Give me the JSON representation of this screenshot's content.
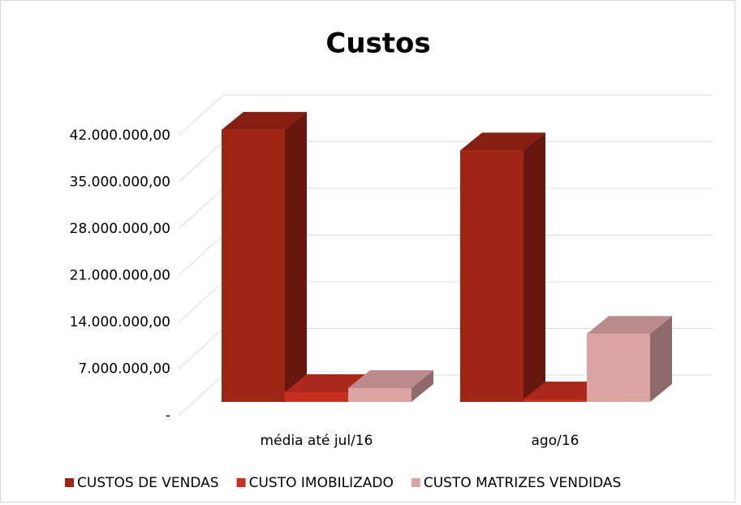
{
  "chart_data": {
    "type": "bar3d",
    "title": "Custos",
    "categories": [
      "média até jul/16",
      "ago/16"
    ],
    "series": [
      {
        "name": "CUSTOS DE VENDAS",
        "color": "#9e2414",
        "values": [
          40800000,
          37700000
        ]
      },
      {
        "name": "CUSTO IMOBILIZADO",
        "color": "#c9311f",
        "values": [
          1460000,
          370000
        ]
      },
      {
        "name": "CUSTO MATRIZES VENDIDAS",
        "color": "#dca3a3",
        "values": [
          2070000,
          10200000
        ]
      }
    ],
    "ylim": [
      0,
      42000000
    ],
    "yticks": [
      {
        "value": 0,
        "label": "-"
      },
      {
        "value": 7000000,
        "label": "7.000.000,00"
      },
      {
        "value": 14000000,
        "label": "14.000.000,00"
      },
      {
        "value": 21000000,
        "label": "21.000.000,00"
      },
      {
        "value": 28000000,
        "label": "28.000.000,00"
      },
      {
        "value": 35000000,
        "label": "35.000.000,00"
      },
      {
        "value": 42000000,
        "label": "42.000.000,00"
      }
    ],
    "grid": true,
    "legend": "bottom"
  }
}
